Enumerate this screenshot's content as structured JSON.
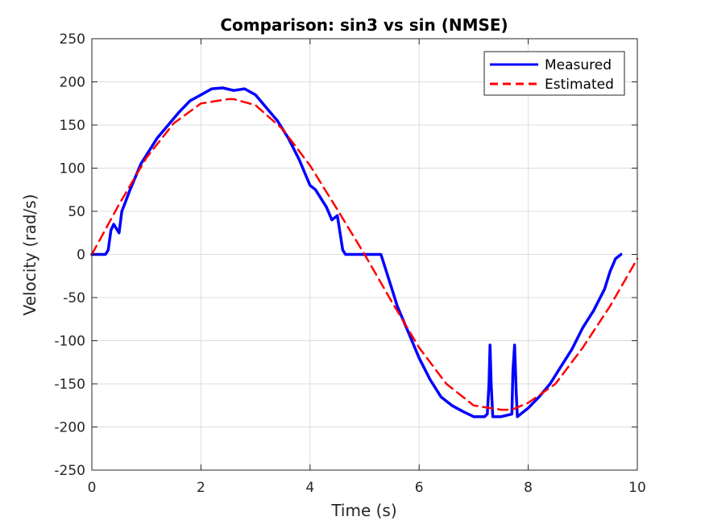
{
  "chart_data": {
    "type": "line",
    "title": "Comparison: sin3 vs sin (NMSE)",
    "xlabel": "Time (s)",
    "ylabel": "Velocity (rad/s)",
    "xlim": [
      0,
      10
    ],
    "ylim": [
      -250,
      250
    ],
    "xticks": [
      0,
      2,
      4,
      6,
      8,
      10
    ],
    "yticks": [
      -250,
      -200,
      -150,
      -100,
      -50,
      0,
      50,
      100,
      150,
      200,
      250
    ],
    "grid": true,
    "legend_position": "top-right",
    "series": [
      {
        "name": "Measured",
        "color": "#0000ff",
        "style": "solid",
        "x": [
          0,
          0.25,
          0.3,
          0.35,
          0.4,
          0.5,
          0.55,
          0.6,
          0.7,
          0.8,
          0.9,
          1.0,
          1.2,
          1.4,
          1.6,
          1.8,
          2.0,
          2.2,
          2.4,
          2.6,
          2.8,
          3.0,
          3.2,
          3.4,
          3.6,
          3.8,
          4.0,
          4.1,
          4.2,
          4.3,
          4.4,
          4.5,
          4.6,
          4.65,
          4.7,
          5.0,
          5.3,
          5.4,
          5.5,
          5.6,
          5.8,
          6.0,
          6.2,
          6.4,
          6.6,
          6.8,
          7.0,
          7.2,
          7.25,
          7.28,
          7.3,
          7.32,
          7.35,
          7.5,
          7.7,
          7.72,
          7.75,
          7.78,
          7.8,
          8.0,
          8.2,
          8.4,
          8.6,
          8.8,
          9.0,
          9.2,
          9.4,
          9.5,
          9.6,
          9.7
        ],
        "y": [
          0,
          0,
          5,
          28,
          35,
          25,
          50,
          58,
          75,
          90,
          105,
          115,
          135,
          150,
          165,
          178,
          185,
          192,
          193,
          190,
          192,
          185,
          170,
          155,
          135,
          110,
          80,
          75,
          65,
          55,
          40,
          45,
          5,
          0,
          0,
          0,
          0,
          -20,
          -40,
          -60,
          -90,
          -120,
          -145,
          -165,
          -175,
          -182,
          -188,
          -188,
          -185,
          -150,
          -105,
          -150,
          -188,
          -188,
          -185,
          -135,
          -105,
          -160,
          -188,
          -178,
          -165,
          -150,
          -130,
          -110,
          -85,
          -65,
          -40,
          -20,
          -5,
          0
        ]
      },
      {
        "name": "Estimated",
        "color": "#ff0000",
        "style": "dashed",
        "x": [
          0,
          0.5,
          1.0,
          1.5,
          2.0,
          2.5,
          2.6,
          3.0,
          3.5,
          4.0,
          4.5,
          5.0,
          5.5,
          6.0,
          6.5,
          7.0,
          7.5,
          7.7,
          8.0,
          8.5,
          9.0,
          9.5,
          10.0
        ],
        "y": [
          0,
          58,
          112,
          152,
          175,
          180,
          180,
          173,
          145,
          103,
          52,
          0,
          -55,
          -108,
          -150,
          -175,
          -180,
          -180,
          -172,
          -150,
          -108,
          -60,
          -5
        ]
      }
    ]
  }
}
